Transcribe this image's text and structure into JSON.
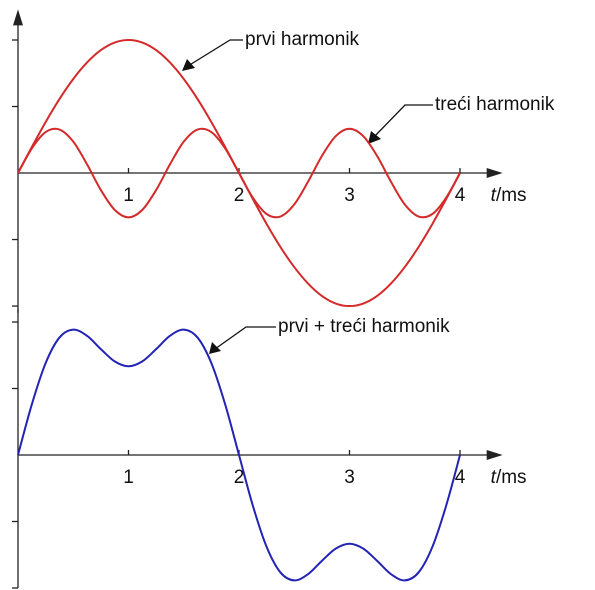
{
  "chart_data": [
    {
      "type": "line",
      "x": [
        0,
        0.125,
        0.25,
        0.375,
        0.5,
        0.625,
        0.75,
        0.875,
        1,
        1.125,
        1.25,
        1.375,
        1.5,
        1.625,
        1.75,
        1.875,
        2,
        2.125,
        2.25,
        2.375,
        2.5,
        2.625,
        2.75,
        2.875,
        3,
        3.125,
        3.25,
        3.375,
        3.5,
        3.625,
        3.75,
        3.875,
        4
      ],
      "series": [
        {
          "name": "prvi harmonik",
          "color": "#d42a2a",
          "values": [
            0,
            0.195,
            0.383,
            0.556,
            0.707,
            0.831,
            0.924,
            0.981,
            1,
            0.981,
            0.924,
            0.831,
            0.707,
            0.556,
            0.383,
            0.195,
            0,
            -0.195,
            -0.383,
            -0.556,
            -0.707,
            -0.831,
            -0.924,
            -0.981,
            -1,
            -0.981,
            -0.924,
            -0.831,
            -0.707,
            -0.556,
            -0.383,
            -0.195,
            0
          ]
        },
        {
          "name": "treći harmonik",
          "color": "#d42a2a",
          "values": [
            0,
            0.185,
            0.308,
            0.327,
            0.236,
            0.065,
            -0.128,
            -0.277,
            -0.333,
            -0.277,
            -0.128,
            0.065,
            0.236,
            0.327,
            0.308,
            0.185,
            0,
            -0.185,
            -0.308,
            -0.327,
            -0.236,
            -0.065,
            0.128,
            0.277,
            0.333,
            0.277,
            0.128,
            -0.065,
            -0.236,
            -0.327,
            -0.308,
            -0.185,
            0
          ]
        }
      ],
      "xlim": [
        0,
        4.35
      ],
      "xticks": [
        1,
        2,
        3,
        4
      ],
      "ylim": [
        -1.05,
        1.2
      ],
      "yticks": [
        -1,
        -0.5,
        0.5,
        1
      ],
      "xlabel_var": "t",
      "xlabel_unit": "/ms"
    },
    {
      "type": "line",
      "x": [
        0,
        0.125,
        0.25,
        0.375,
        0.5,
        0.625,
        0.75,
        0.875,
        1,
        1.125,
        1.25,
        1.375,
        1.5,
        1.625,
        1.75,
        1.875,
        2,
        2.125,
        2.25,
        2.375,
        2.5,
        2.625,
        2.75,
        2.875,
        3,
        3.125,
        3.25,
        3.375,
        3.5,
        3.625,
        3.75,
        3.875,
        4
      ],
      "series": [
        {
          "name": "prvi + treći harmonik",
          "color": "#2424b4",
          "values": [
            0,
            0.38,
            0.691,
            0.883,
            0.943,
            0.896,
            0.796,
            0.704,
            0.667,
            0.704,
            0.796,
            0.896,
            0.943,
            0.883,
            0.691,
            0.38,
            0,
            -0.38,
            -0.691,
            -0.883,
            -0.943,
            -0.896,
            -0.796,
            -0.704,
            -0.667,
            -0.704,
            -0.796,
            -0.896,
            -0.943,
            -0.883,
            -0.691,
            -0.38,
            0
          ]
        }
      ],
      "xlim": [
        0,
        4.35
      ],
      "xticks": [
        1,
        2,
        3,
        4
      ],
      "ylim": [
        -1,
        1.1
      ],
      "yticks": [
        -1,
        -0.5,
        0.5,
        1
      ],
      "xlabel_var": "t",
      "xlabel_unit": "/ms"
    }
  ]
}
